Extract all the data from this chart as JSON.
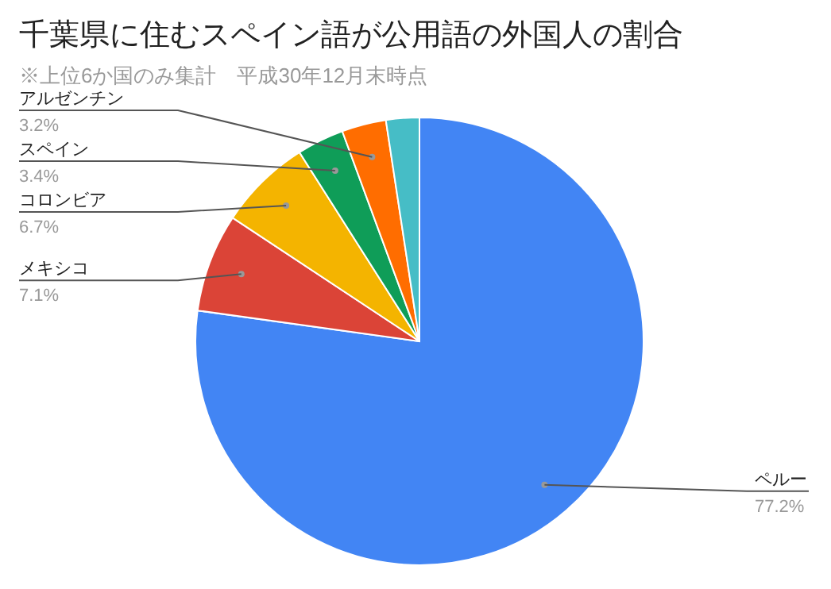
{
  "chart_data": {
    "type": "pie",
    "title": "千葉県に住むスペイン語が公用語の外国人の割合",
    "subtitle": "※上位6か国のみ集計　平成30年12月末時点",
    "categories": [
      "ペルー",
      "メキシコ",
      "コロンビア",
      "スペイン",
      "アルゼンチン",
      null
    ],
    "values": [
      77.2,
      7.1,
      6.7,
      3.4,
      3.2,
      2.4
    ],
    "value_labels": [
      "77.2%",
      "7.1%",
      "6.7%",
      "3.4%",
      "3.2%",
      null
    ],
    "colors": [
      "#4285f4",
      "#db4437",
      "#f4b400",
      "#0f9d58",
      "#ff6d00",
      "#46bdc6"
    ]
  }
}
